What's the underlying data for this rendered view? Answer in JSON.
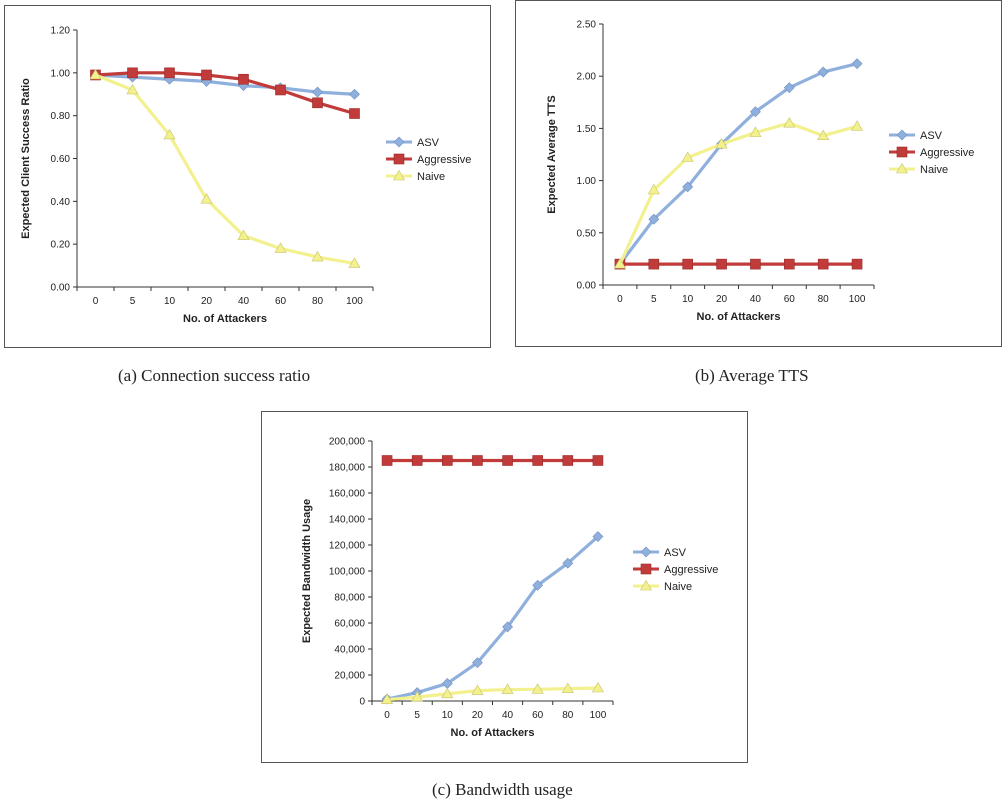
{
  "chart_data": [
    {
      "type": "line",
      "caption": "(a) Connection success ratio",
      "xlabel": "No. of Attackers",
      "ylabel": "Expected Client Success Ratio",
      "categories": [
        "0",
        "5",
        "10",
        "20",
        "40",
        "60",
        "80",
        "100"
      ],
      "y_ticks": [
        "0.00",
        "0.20",
        "0.40",
        "0.60",
        "0.80",
        "1.00",
        "1.20"
      ],
      "ylim": [
        0,
        1.2
      ],
      "legend_placement": "right",
      "grid": false,
      "series": [
        {
          "name": "ASV",
          "color": "#8fb0dd",
          "marker": "diamond",
          "values": [
            0.99,
            0.98,
            0.97,
            0.96,
            0.94,
            0.93,
            0.91,
            0.9
          ]
        },
        {
          "name": "Aggressive",
          "color": "#c23b3b",
          "marker": "square",
          "values": [
            0.99,
            1.0,
            1.0,
            0.99,
            0.97,
            0.92,
            0.86,
            0.81
          ]
        },
        {
          "name": "Naive",
          "color": "#f3f08e",
          "marker": "triangle",
          "values": [
            0.99,
            0.92,
            0.71,
            0.41,
            0.24,
            0.18,
            0.14,
            0.11
          ]
        }
      ]
    },
    {
      "type": "line",
      "caption": "(b) Average TTS",
      "xlabel": "No. of Attackers",
      "ylabel": "Expected Average TTS",
      "categories": [
        "0",
        "5",
        "10",
        "20",
        "40",
        "60",
        "80",
        "100"
      ],
      "y_ticks": [
        "0.00",
        "0.50",
        "1.00",
        "1.50",
        "2.00",
        "2.50"
      ],
      "ylim": [
        0,
        2.5
      ],
      "legend_placement": "right",
      "grid": false,
      "series": [
        {
          "name": "ASV",
          "color": "#8fb0dd",
          "marker": "diamond",
          "values": [
            0.2,
            0.63,
            0.94,
            1.35,
            1.66,
            1.89,
            2.04,
            2.12
          ]
        },
        {
          "name": "Aggressive",
          "color": "#c23b3b",
          "marker": "square",
          "values": [
            0.2,
            0.2,
            0.2,
            0.2,
            0.2,
            0.2,
            0.2,
            0.2
          ]
        },
        {
          "name": "Naive",
          "color": "#f3f08e",
          "marker": "triangle",
          "values": [
            0.2,
            0.91,
            1.22,
            1.35,
            1.46,
            1.55,
            1.43,
            1.52
          ]
        }
      ]
    },
    {
      "type": "line",
      "caption": "(c) Bandwidth usage",
      "xlabel": "No. of Attackers",
      "ylabel": "Expected Bandwidth Usage",
      "categories": [
        "0",
        "5",
        "10",
        "20",
        "40",
        "60",
        "80",
        "100"
      ],
      "y_ticks": [
        "0",
        "20,000",
        "40,000",
        "60,000",
        "80,000",
        "100,000",
        "120,000",
        "140,000",
        "160,000",
        "180,000",
        "200,000"
      ],
      "ylim": [
        0,
        200000
      ],
      "legend_placement": "right",
      "grid": false,
      "series": [
        {
          "name": "ASV",
          "color": "#8fb0dd",
          "marker": "diamond",
          "values": [
            1500,
            6500,
            13500,
            29500,
            57000,
            89000,
            106000,
            126500
          ]
        },
        {
          "name": "Aggressive",
          "color": "#c23b3b",
          "marker": "square",
          "values": [
            185000,
            185000,
            185000,
            185000,
            185000,
            185000,
            185000,
            185000
          ]
        },
        {
          "name": "Naive",
          "color": "#f3f08e",
          "marker": "triangle",
          "values": [
            1000,
            3000,
            5500,
            8000,
            8800,
            9000,
            9500,
            10000
          ]
        }
      ]
    }
  ]
}
